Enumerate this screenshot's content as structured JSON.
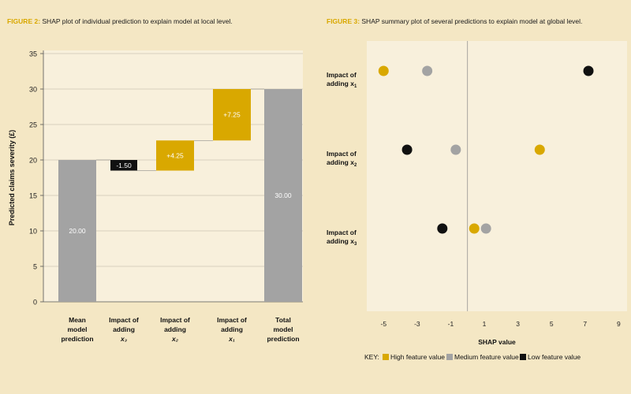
{
  "figure2": {
    "title_num": "FIGURE 2:",
    "title_text": " SHAP plot of individual prediction to explain model at local level."
  },
  "figure3": {
    "title_num": "FIGURE 3:",
    "title_text": " SHAP summary plot of several predictions to explain model at global level."
  },
  "colors": {
    "high": "#d9a800",
    "medium": "#a3a3a3",
    "low": "#111111",
    "bar_grey": "#a3a3a3",
    "panel_bg": "#f4e7c4",
    "plot_bg": "#f8f0dc"
  },
  "chart_data": [
    {
      "type": "bar",
      "subtype": "waterfall",
      "ylabel": "Predicted claims severity (£)",
      "ylim": [
        0,
        35
      ],
      "yticks": [
        0,
        5,
        10,
        15,
        20,
        25,
        30,
        35
      ],
      "grid": true,
      "categories": [
        [
          "Mean",
          "model",
          "prediction"
        ],
        [
          "Impact of",
          "adding",
          "x₃"
        ],
        [
          "Impact of",
          "adding",
          "x₂"
        ],
        [
          "Impact of",
          "adding",
          "x₁"
        ],
        [
          "Total",
          "model",
          "prediction"
        ]
      ],
      "bars": [
        {
          "start": 0,
          "end": 20.0,
          "label": "20.00",
          "color": "grey"
        },
        {
          "start": 20.0,
          "end": 18.5,
          "label": "-1.50",
          "color": "black"
        },
        {
          "start": 18.5,
          "end": 22.75,
          "label": "+4.25",
          "color": "gold"
        },
        {
          "start": 22.75,
          "end": 30.0,
          "label": "+7.25",
          "color": "gold"
        },
        {
          "start": 0,
          "end": 30.0,
          "label": "30.00",
          "color": "grey"
        }
      ]
    },
    {
      "type": "scatter",
      "xlabel": "SHAP value",
      "xlim": [
        -6,
        9.5
      ],
      "xticks": [
        -5,
        -3,
        -1,
        1,
        3,
        5,
        7,
        9
      ],
      "rows": [
        {
          "label_line1": "Impact of",
          "label_line2": "adding x",
          "sub": "1",
          "points": [
            {
              "x": -5.0,
              "level": "high"
            },
            {
              "x": -2.4,
              "level": "medium"
            },
            {
              "x": 7.2,
              "level": "low"
            }
          ]
        },
        {
          "label_line1": "Impact of",
          "label_line2": "adding x",
          "sub": "2",
          "points": [
            {
              "x": -3.6,
              "level": "low"
            },
            {
              "x": -0.7,
              "level": "medium"
            },
            {
              "x": 4.3,
              "level": "high"
            }
          ]
        },
        {
          "label_line1": "Impact of",
          "label_line2": "adding x",
          "sub": "3",
          "points": [
            {
              "x": -1.5,
              "level": "low"
            },
            {
              "x": 0.4,
              "level": "high"
            },
            {
              "x": 1.1,
              "level": "medium"
            }
          ]
        }
      ],
      "legend": {
        "prefix": "KEY:",
        "items": [
          {
            "level": "high",
            "label": "High feature value"
          },
          {
            "level": "medium",
            "label": "Medium feature value"
          },
          {
            "level": "low",
            "label": "Low feature value"
          }
        ]
      }
    }
  ]
}
